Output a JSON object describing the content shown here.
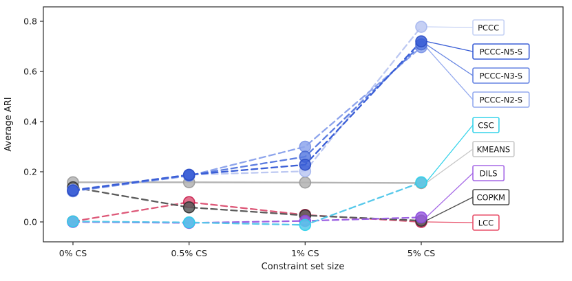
{
  "chart_data": {
    "type": "line",
    "title": "",
    "xlabel": "Constraint set size",
    "ylabel": "Average ARI",
    "categories": [
      "0% CS",
      "0.5% CS",
      "1% CS",
      "5% CS"
    ],
    "y_ticks": [
      "0.0",
      "0.2",
      "0.4",
      "0.6",
      "0.8"
    ],
    "ylim": [
      -0.06,
      0.86
    ],
    "grid": false,
    "legend_position": "right-outside",
    "series": [
      {
        "name": "PCCC",
        "values": [
          0.128,
          0.188,
          0.202,
          0.778
        ],
        "color": "#bcc8f2",
        "marker_edge": "#a4b5ee",
        "legend_border": "#c6d2f4",
        "style": "dashed"
      },
      {
        "name": "PCCC-N5-S",
        "values": [
          0.126,
          0.188,
          0.228,
          0.72
        ],
        "color": "#3a5ed6",
        "marker_edge": "#2b4cc4",
        "legend_border": "#3a5ed6",
        "style": "dashed"
      },
      {
        "name": "PCCC-N3-S",
        "values": [
          0.124,
          0.186,
          0.26,
          0.708
        ],
        "color": "#5b7ce0",
        "marker_edge": "#4a6ad2",
        "legend_border": "#6584e2",
        "style": "dashed"
      },
      {
        "name": "PCCC-N2-S",
        "values": [
          0.122,
          0.184,
          0.3,
          0.697
        ],
        "color": "#8da4ec",
        "marker_edge": "#7b93e6",
        "legend_border": "#93a9ee",
        "style": "dashed"
      },
      {
        "name": "CSC",
        "values": [
          0.002,
          -0.002,
          -0.012,
          0.158
        ],
        "color": "#55c8ea",
        "marker_edge": "#2ed0ea",
        "legend_border": "#35d3ea",
        "style": "dashed"
      },
      {
        "name": "KMEANS",
        "values": [
          0.158,
          0.158,
          0.157,
          0.155
        ],
        "color": "#b3b3b3",
        "marker_edge": "#999999",
        "legend_border": "#c6c6c6",
        "style": "solid"
      },
      {
        "name": "DILS",
        "values": [
          0.0,
          -0.004,
          0.004,
          0.018
        ],
        "color": "#9c61e2",
        "marker_edge": "#8a46dc",
        "legend_border": "#a568e6",
        "style": "dashed"
      },
      {
        "name": "COPKM",
        "values": [
          0.138,
          0.058,
          0.026,
          0.005
        ],
        "color": "#5a5a5a",
        "marker_edge": "#303030",
        "legend_border": "#4d4d4d",
        "style": "dashed"
      },
      {
        "name": "LCC",
        "values": [
          0.002,
          0.079,
          0.028,
          0.0
        ],
        "color": "#dd5878",
        "marker_edge": "#c81e4e",
        "legend_border": "#e8506a",
        "style": "dashed"
      }
    ]
  }
}
